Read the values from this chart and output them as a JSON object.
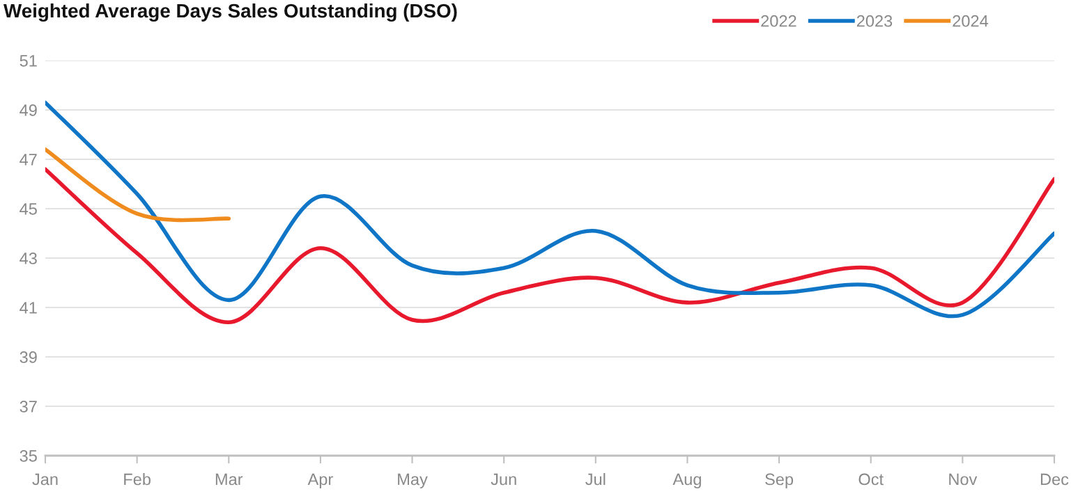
{
  "chart_data": {
    "type": "line",
    "title": "Weighted Average Days Sales Outstanding (DSO)",
    "categories": [
      "Jan",
      "Feb",
      "Mar",
      "Apr",
      "May",
      "Jun",
      "Jul",
      "Aug",
      "Sep",
      "Oct",
      "Nov",
      "Dec"
    ],
    "series": [
      {
        "name": "2022",
        "color": "#e8192c",
        "values": [
          46.6,
          43.2,
          40.4,
          43.4,
          40.5,
          41.6,
          42.2,
          41.2,
          42.0,
          42.6,
          41.2,
          46.2
        ]
      },
      {
        "name": "2023",
        "color": "#0f75c6",
        "values": [
          49.3,
          45.6,
          41.3,
          45.5,
          42.7,
          42.6,
          44.1,
          41.9,
          41.6,
          41.9,
          40.7,
          44.0
        ]
      },
      {
        "name": "2024",
        "color": "#f08c1e",
        "values": [
          47.4,
          44.8,
          44.6,
          null,
          null,
          null,
          null,
          null,
          null,
          null,
          null,
          null
        ]
      }
    ],
    "ylim": [
      35,
      51
    ],
    "yticks": [
      35,
      37,
      39,
      41,
      43,
      45,
      47,
      49,
      51
    ],
    "grid": "y",
    "legend": "top right",
    "marker": "none",
    "line_style": "solid"
  }
}
